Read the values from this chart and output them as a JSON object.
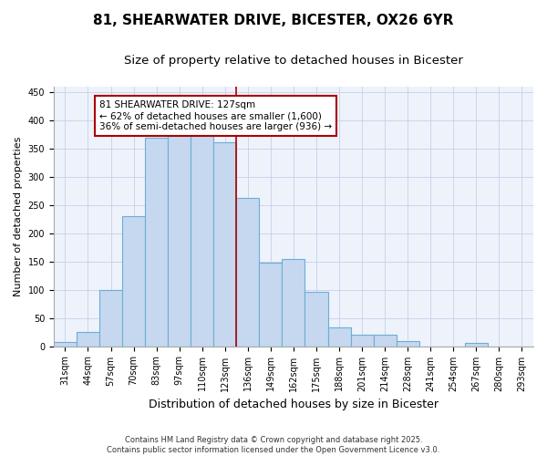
{
  "title": "81, SHEARWATER DRIVE, BICESTER, OX26 6YR",
  "subtitle": "Size of property relative to detached houses in Bicester",
  "xlabel": "Distribution of detached houses by size in Bicester",
  "ylabel": "Number of detached properties",
  "categories": [
    "31sqm",
    "44sqm",
    "57sqm",
    "70sqm",
    "83sqm",
    "97sqm",
    "110sqm",
    "123sqm",
    "136sqm",
    "149sqm",
    "162sqm",
    "175sqm",
    "188sqm",
    "201sqm",
    "214sqm",
    "228sqm",
    "241sqm",
    "254sqm",
    "267sqm",
    "280sqm",
    "293sqm"
  ],
  "values": [
    8,
    25,
    100,
    230,
    370,
    375,
    378,
    362,
    262,
    148,
    155,
    96,
    33,
    20,
    20,
    9,
    0,
    0,
    5,
    0,
    0
  ],
  "bar_color": "#c5d8f0",
  "bar_edge_color": "#6baed6",
  "background_color": "#eef2fb",
  "grid_color": "#c8cfe8",
  "annotation_line1": "81 SHEARWATER DRIVE: 127sqm",
  "annotation_line2": "← 62% of detached houses are smaller (1,600)",
  "annotation_line3": "36% of semi-detached houses are larger (936) →",
  "annotation_box_color": "#ffffff",
  "annotation_box_edge": "#aa0000",
  "vline_color": "#aa0000",
  "vline_x_index": 7,
  "yticks": [
    0,
    50,
    100,
    150,
    200,
    250,
    300,
    350,
    400,
    450
  ],
  "ylim": [
    0,
    460
  ],
  "footer": "Contains HM Land Registry data © Crown copyright and database right 2025.\nContains public sector information licensed under the Open Government Licence v3.0.",
  "title_fontsize": 11,
  "subtitle_fontsize": 9.5,
  "xlabel_fontsize": 9,
  "ylabel_fontsize": 8,
  "tick_fontsize": 7,
  "annotation_fontsize": 7.5,
  "footer_fontsize": 6
}
